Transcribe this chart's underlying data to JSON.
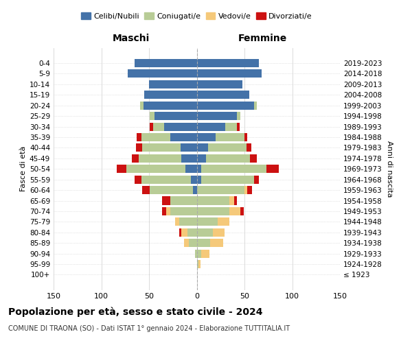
{
  "age_groups": [
    "0-4",
    "5-9",
    "10-14",
    "15-19",
    "20-24",
    "25-29",
    "30-34",
    "35-39",
    "40-44",
    "45-49",
    "50-54",
    "55-59",
    "60-64",
    "65-69",
    "70-74",
    "75-79",
    "80-84",
    "85-89",
    "90-94",
    "95-99",
    "100+"
  ],
  "birth_years": [
    "2019-2023",
    "2014-2018",
    "2009-2013",
    "2004-2008",
    "1999-2003",
    "1994-1998",
    "1989-1993",
    "1984-1988",
    "1979-1983",
    "1974-1978",
    "1969-1973",
    "1964-1968",
    "1959-1963",
    "1954-1958",
    "1949-1953",
    "1944-1948",
    "1939-1943",
    "1934-1938",
    "1929-1933",
    "1924-1928",
    "≤ 1923"
  ],
  "colors": {
    "celibi": "#4472a8",
    "coniugati": "#b8cc96",
    "vedovi": "#f5c97a",
    "divorziati": "#cc1111"
  },
  "males": {
    "celibi": [
      65,
      72,
      50,
      55,
      56,
      44,
      34,
      28,
      17,
      16,
      12,
      6,
      4,
      0,
      0,
      0,
      0,
      0,
      0,
      0,
      0
    ],
    "coniugati": [
      0,
      0,
      0,
      0,
      3,
      5,
      12,
      30,
      40,
      45,
      62,
      52,
      45,
      28,
      28,
      18,
      10,
      8,
      2,
      0,
      0
    ],
    "vedovi": [
      0,
      0,
      0,
      0,
      0,
      0,
      0,
      0,
      0,
      0,
      0,
      0,
      0,
      0,
      4,
      5,
      6,
      5,
      0,
      0,
      0
    ],
    "divorziati": [
      0,
      0,
      0,
      0,
      0,
      0,
      3,
      5,
      7,
      7,
      10,
      7,
      8,
      8,
      4,
      0,
      2,
      0,
      0,
      0,
      0
    ]
  },
  "females": {
    "nubili": [
      65,
      68,
      48,
      55,
      60,
      42,
      30,
      20,
      12,
      10,
      5,
      5,
      0,
      0,
      0,
      0,
      0,
      0,
      0,
      0,
      0
    ],
    "coniugate": [
      0,
      0,
      0,
      0,
      3,
      4,
      12,
      30,
      40,
      46,
      68,
      55,
      50,
      34,
      34,
      22,
      17,
      14,
      5,
      2,
      0
    ],
    "vedove": [
      0,
      0,
      0,
      0,
      0,
      0,
      0,
      0,
      0,
      0,
      0,
      0,
      3,
      5,
      12,
      12,
      12,
      14,
      8,
      2,
      0
    ],
    "divorziate": [
      0,
      0,
      0,
      0,
      0,
      0,
      3,
      3,
      5,
      7,
      13,
      5,
      5,
      3,
      3,
      0,
      0,
      0,
      0,
      0,
      0
    ]
  },
  "title": "Popolazione per età, sesso e stato civile - 2024",
  "subtitle": "COMUNE DI TRAONA (SO) - Dati ISTAT 1° gennaio 2024 - Elaborazione TUTTITALIA.IT",
  "header_left": "Maschi",
  "header_right": "Femmine",
  "ylabel_left": "Fasce di età",
  "ylabel_right": "Anni di nascita",
  "xlim": 150,
  "bg_color": "#ffffff",
  "grid_color": "#cccccc",
  "legend_labels": [
    "Celibi/Nubili",
    "Coniugati/e",
    "Vedovi/e",
    "Divorziati/e"
  ]
}
